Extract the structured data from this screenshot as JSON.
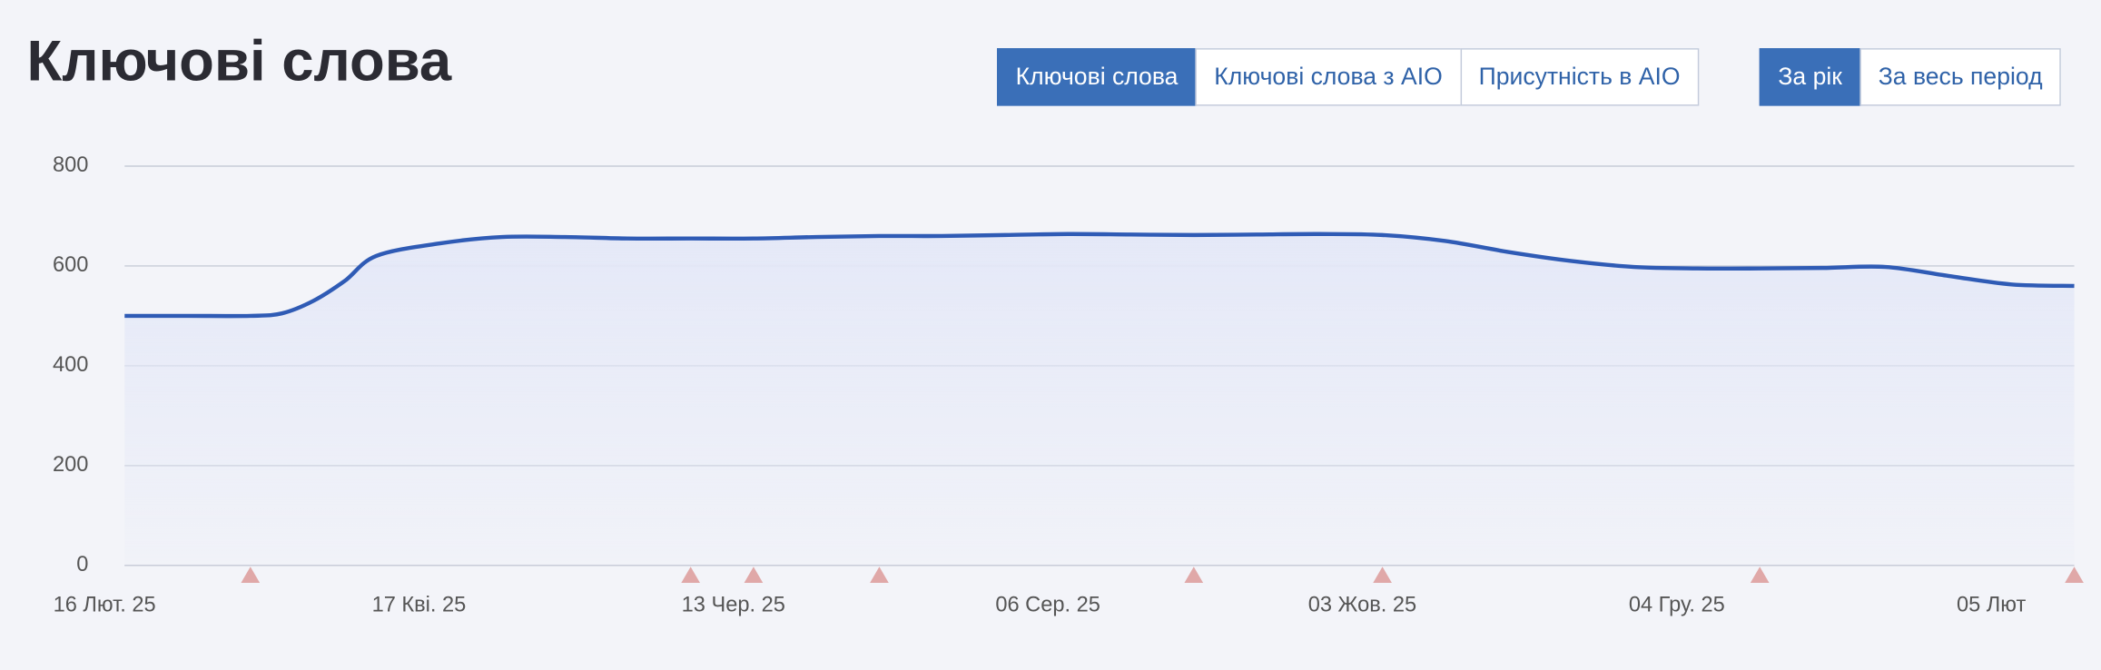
{
  "header": {
    "title": "Ключові слова"
  },
  "tabs": {
    "metric": [
      "Ключові слова",
      "Ключові слова з AIO",
      "Присутність в AIO"
    ],
    "period": [
      "За рік",
      "За весь період"
    ]
  },
  "chart_data": {
    "type": "line",
    "x": [
      0,
      2,
      4,
      5,
      6,
      7,
      8,
      10,
      12,
      14,
      16,
      18,
      20,
      22,
      24,
      26,
      28,
      30,
      32,
      34,
      36,
      38,
      40,
      42,
      44,
      46,
      48,
      50,
      52,
      54,
      56,
      58,
      60,
      62
    ],
    "series": [
      {
        "color": "#2f5bb5",
        "values": [
          500,
          500,
          500,
          505,
          530,
          570,
          620,
          645,
          658,
          658,
          655,
          655,
          655,
          658,
          660,
          660,
          662,
          664,
          663,
          662,
          663,
          664,
          662,
          650,
          628,
          610,
          598,
          595,
          595,
          596,
          598,
          580,
          563,
          560
        ]
      }
    ],
    "xlim": [
      0,
      62
    ],
    "xticks": [
      {
        "value": 0,
        "label": "16 Лют. 25"
      },
      {
        "value": 10,
        "label": "17 Кві. 25"
      },
      {
        "value": 20,
        "label": "13 Чер. 25"
      },
      {
        "value": 30,
        "label": "06 Сер. 25"
      },
      {
        "value": 40,
        "label": "03 Жов. 25"
      },
      {
        "value": 50,
        "label": "04 Гру. 25"
      },
      {
        "value": 60,
        "label": "05 Лют"
      }
    ],
    "ylim": [
      0,
      800
    ],
    "yticks": [
      0,
      200,
      400,
      600,
      800
    ],
    "grid": true,
    "event_x": [
      4,
      18,
      20,
      24,
      34,
      40,
      52,
      62
    ],
    "event_color": "#e0a8a8"
  }
}
